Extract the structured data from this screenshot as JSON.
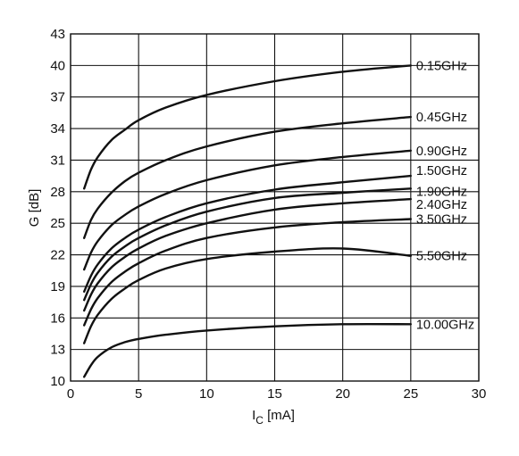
{
  "chart_data": {
    "type": "line",
    "xlabel_main": "I",
    "xlabel_sub": "C",
    "xlabel_unit": " [mA]",
    "ylabel": "G [dB]",
    "xlim": [
      0,
      30
    ],
    "ylim": [
      10,
      43
    ],
    "x_ticks": [
      0,
      5,
      10,
      15,
      20,
      25,
      30
    ],
    "y_ticks": [
      10,
      13,
      16,
      19,
      22,
      25,
      28,
      31,
      34,
      37,
      40,
      43
    ],
    "grid": true,
    "legend": "labels at right end of each curve",
    "series": [
      {
        "name": "0.15GHz",
        "x": [
          1,
          1.5,
          2,
          3,
          4,
          5,
          7,
          10,
          15,
          20,
          25
        ],
        "y": [
          28.3,
          30.1,
          31.3,
          32.9,
          33.9,
          34.8,
          36.0,
          37.2,
          38.5,
          39.4,
          40.0
        ]
      },
      {
        "name": "0.45GHz",
        "x": [
          1,
          1.5,
          2,
          3,
          4,
          5,
          7,
          10,
          15,
          20,
          25
        ],
        "y": [
          23.6,
          25.3,
          26.4,
          27.9,
          29.0,
          29.8,
          31.0,
          32.3,
          33.7,
          34.5,
          35.1
        ]
      },
      {
        "name": "0.90GHz",
        "x": [
          1,
          1.5,
          2,
          3,
          4,
          5,
          7,
          10,
          15,
          20,
          25
        ],
        "y": [
          20.6,
          22.2,
          23.3,
          24.8,
          25.8,
          26.6,
          27.8,
          29.1,
          30.5,
          31.3,
          31.9
        ]
      },
      {
        "name": "1.50GHz",
        "x": [
          1,
          1.5,
          2,
          3,
          4,
          5,
          7,
          10,
          15,
          20,
          25
        ],
        "y": [
          18.5,
          20.0,
          21.1,
          22.6,
          23.6,
          24.4,
          25.6,
          26.9,
          28.2,
          28.9,
          29.5
        ]
      },
      {
        "name": "1.90GHz",
        "x": [
          1,
          1.5,
          2,
          3,
          4,
          5,
          7,
          10,
          15,
          20,
          25
        ],
        "y": [
          17.7,
          19.2,
          20.3,
          21.8,
          22.8,
          23.6,
          24.8,
          26.1,
          27.4,
          27.9,
          28.3
        ]
      },
      {
        "name": "2.40GHz",
        "x": [
          1,
          1.5,
          2,
          3,
          4,
          5,
          7,
          10,
          15,
          20,
          25
        ],
        "y": [
          16.7,
          18.2,
          19.3,
          20.8,
          21.8,
          22.6,
          23.8,
          25.0,
          26.3,
          26.9,
          27.3
        ]
      },
      {
        "name": "3.50GHz",
        "x": [
          1,
          1.5,
          2,
          3,
          4,
          5,
          7,
          10,
          15,
          20,
          25
        ],
        "y": [
          15.3,
          16.8,
          17.9,
          19.4,
          20.4,
          21.2,
          22.4,
          23.6,
          24.6,
          25.1,
          25.4
        ]
      },
      {
        "name": "5.50GHz",
        "x": [
          1,
          1.5,
          2,
          3,
          4,
          5,
          7,
          10,
          15,
          20,
          25
        ],
        "y": [
          13.6,
          15.2,
          16.3,
          17.8,
          18.8,
          19.6,
          20.7,
          21.6,
          22.3,
          22.6,
          21.9
        ]
      },
      {
        "name": "10.00GHz",
        "x": [
          1,
          1.5,
          2,
          3,
          4,
          5,
          7,
          10,
          15,
          20,
          25
        ],
        "y": [
          10.4,
          11.5,
          12.3,
          13.2,
          13.7,
          14.0,
          14.4,
          14.8,
          15.2,
          15.4,
          15.4
        ]
      }
    ]
  }
}
